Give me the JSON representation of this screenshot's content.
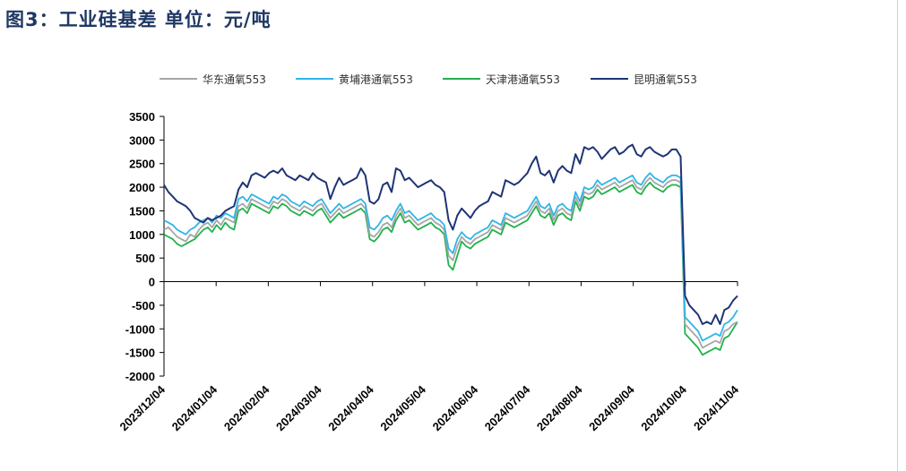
{
  "title": "图3：工业硅基差   单位：元/吨",
  "chart_data": {
    "type": "line",
    "title": "图3：工业硅基差   单位：元/吨",
    "xlabel": "",
    "ylabel": "元/吨",
    "ylim": [
      -2000,
      3500
    ],
    "yticks": [
      3500,
      3000,
      2500,
      2000,
      1500,
      1000,
      500,
      0,
      -500,
      -1000,
      -1500,
      -2000
    ],
    "x_tick_labels": [
      "2023/12/04",
      "2024/01/04",
      "2024/02/04",
      "2024/03/04",
      "2024/04/04",
      "2024/05/04",
      "2024/06/04",
      "2024/07/04",
      "2024/08/04",
      "2024/09/04",
      "2024/10/04",
      "2024/11/04"
    ],
    "grid": false,
    "legend_position": "top",
    "series": [
      {
        "name": "华东通氧553",
        "color": "#a6a6a6",
        "values": [
          1100,
          1150,
          1050,
          950,
          900,
          850,
          1000,
          950,
          1100,
          1200,
          1250,
          1150,
          1300,
          1200,
          1350,
          1300,
          1250,
          1600,
          1650,
          1550,
          1750,
          1700,
          1650,
          1600,
          1550,
          1700,
          1650,
          1750,
          1700,
          1600,
          1550,
          1500,
          1600,
          1550,
          1500,
          1600,
          1650,
          1500,
          1350,
          1450,
          1550,
          1450,
          1500,
          1550,
          1600,
          1650,
          1550,
          1000,
          950,
          1050,
          1200,
          1250,
          1150,
          1400,
          1550,
          1350,
          1400,
          1300,
          1200,
          1250,
          1300,
          1350,
          1250,
          1200,
          1100,
          550,
          450,
          750,
          950,
          850,
          800,
          900,
          950,
          1000,
          1050,
          1200,
          1150,
          1100,
          1350,
          1300,
          1250,
          1300,
          1350,
          1400,
          1550,
          1700,
          1500,
          1450,
          1550,
          1300,
          1500,
          1550,
          1450,
          1400,
          1800,
          1600,
          1900,
          1850,
          1900,
          2050,
          1950,
          2000,
          2050,
          2100,
          2000,
          2050,
          2100,
          2150,
          2000,
          1950,
          2100,
          2200,
          2100,
          2050,
          2000,
          2100,
          2150,
          2150,
          2100,
          -900,
          -1000,
          -1100,
          -1200,
          -1400,
          -1350,
          -1300,
          -1250,
          -1300,
          -1050,
          -1000,
          -900,
          -850
        ]
      },
      {
        "name": "黄埔港通氧553",
        "color": "#2fb5e8",
        "values": [
          1300,
          1250,
          1200,
          1100,
          1050,
          1000,
          1100,
          1150,
          1250,
          1300,
          1350,
          1250,
          1400,
          1350,
          1450,
          1400,
          1350,
          1750,
          1800,
          1700,
          1850,
          1800,
          1750,
          1700,
          1650,
          1800,
          1750,
          1850,
          1800,
          1700,
          1650,
          1600,
          1700,
          1650,
          1600,
          1700,
          1750,
          1600,
          1450,
          1550,
          1650,
          1550,
          1600,
          1650,
          1700,
          1750,
          1650,
          1150,
          1100,
          1200,
          1350,
          1400,
          1300,
          1500,
          1650,
          1450,
          1500,
          1400,
          1300,
          1350,
          1400,
          1450,
          1350,
          1300,
          1200,
          700,
          600,
          900,
          1050,
          950,
          900,
          1000,
          1050,
          1100,
          1150,
          1300,
          1250,
          1200,
          1450,
          1400,
          1350,
          1400,
          1450,
          1500,
          1650,
          1800,
          1600,
          1550,
          1650,
          1400,
          1600,
          1650,
          1550,
          1500,
          1900,
          1700,
          2000,
          1950,
          2000,
          2150,
          2050,
          2100,
          2150,
          2200,
          2100,
          2150,
          2200,
          2250,
          2100,
          2050,
          2200,
          2300,
          2200,
          2150,
          2100,
          2200,
          2250,
          2250,
          2200,
          -750,
          -850,
          -950,
          -1050,
          -1250,
          -1200,
          -1150,
          -1100,
          -1150,
          -900,
          -850,
          -750,
          -600
        ]
      },
      {
        "name": "天津港通氧553",
        "color": "#21b14c",
        "values": [
          1000,
          950,
          900,
          800,
          750,
          800,
          850,
          900,
          1000,
          1100,
          1150,
          1050,
          1200,
          1100,
          1250,
          1150,
          1100,
          1500,
          1550,
          1450,
          1650,
          1600,
          1550,
          1500,
          1450,
          1600,
          1550,
          1650,
          1600,
          1500,
          1450,
          1400,
          1500,
          1450,
          1400,
          1500,
          1550,
          1400,
          1250,
          1350,
          1450,
          1350,
          1400,
          1450,
          1500,
          1550,
          1450,
          900,
          850,
          950,
          1100,
          1150,
          1050,
          1300,
          1450,
          1250,
          1300,
          1200,
          1100,
          1150,
          1200,
          1250,
          1150,
          1100,
          1000,
          350,
          250,
          550,
          850,
          750,
          700,
          800,
          850,
          900,
          950,
          1100,
          1050,
          1000,
          1250,
          1200,
          1150,
          1200,
          1250,
          1300,
          1450,
          1600,
          1400,
          1350,
          1450,
          1200,
          1400,
          1450,
          1350,
          1300,
          1700,
          1500,
          1800,
          1750,
          1800,
          1950,
          1850,
          1900,
          1950,
          2000,
          1900,
          1950,
          2000,
          2050,
          1900,
          1850,
          2000,
          2100,
          2000,
          1950,
          1900,
          2000,
          2050,
          2050,
          2000,
          -1100,
          -1200,
          -1300,
          -1400,
          -1550,
          -1500,
          -1450,
          -1400,
          -1450,
          -1200,
          -1150,
          -1000,
          -850
        ]
      },
      {
        "name": "昆明通氧553",
        "color": "#1f3475",
        "values": [
          2050,
          1900,
          1800,
          1700,
          1650,
          1600,
          1500,
          1350,
          1300,
          1250,
          1350,
          1300,
          1350,
          1400,
          1500,
          1550,
          1600,
          1950,
          2100,
          2000,
          2250,
          2300,
          2250,
          2200,
          2300,
          2350,
          2300,
          2400,
          2250,
          2200,
          2150,
          2250,
          2200,
          2150,
          2300,
          2200,
          2150,
          2100,
          1750,
          2000,
          2200,
          2050,
          2100,
          2150,
          2200,
          2400,
          2250,
          1700,
          1650,
          1750,
          2050,
          2100,
          1900,
          2400,
          2350,
          2150,
          2200,
          2100,
          2000,
          2050,
          2100,
          2150,
          2050,
          2000,
          1900,
          1300,
          1100,
          1400,
          1550,
          1450,
          1350,
          1500,
          1600,
          1650,
          1700,
          1900,
          1850,
          1800,
          2150,
          2100,
          2050,
          2100,
          2200,
          2300,
          2500,
          2650,
          2300,
          2250,
          2350,
          2100,
          2350,
          2450,
          2350,
          2300,
          2700,
          2500,
          2850,
          2800,
          2850,
          2750,
          2600,
          2700,
          2800,
          2850,
          2700,
          2750,
          2850,
          2900,
          2700,
          2650,
          2800,
          2850,
          2750,
          2700,
          2650,
          2700,
          2800,
          2800,
          2650,
          -300,
          -500,
          -600,
          -700,
          -900,
          -850,
          -900,
          -700,
          -900,
          -600,
          -550,
          -400,
          -300
        ]
      }
    ]
  }
}
